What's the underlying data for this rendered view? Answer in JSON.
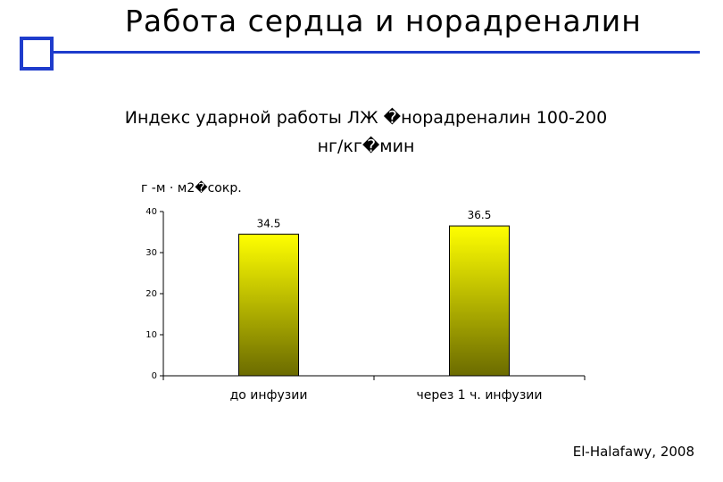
{
  "slide": {
    "title": "Работа сердца и норадреналин",
    "source": "El-Halafawy, 2008"
  },
  "colors": {
    "accent": "#1e3ccc",
    "bar_top": "#ffff00",
    "bar_bottom": "#6b6b00"
  },
  "chart_data": {
    "type": "bar",
    "title_line1": "Индекс ударной работы ЛЖ �норадреналин 100-200",
    "title_line2": "нг/кг�мин",
    "ylabel": "г -м · м2�сокр.",
    "xlabel": "",
    "categories": [
      "до инфузии",
      "через 1 ч. инфузии"
    ],
    "values": [
      34.5,
      36.5
    ],
    "data_labels": [
      "34.5",
      "36.5"
    ],
    "ylim": [
      0,
      40
    ],
    "yticks": [
      0,
      10,
      20,
      30,
      40
    ],
    "grid": false,
    "legend": "none"
  }
}
